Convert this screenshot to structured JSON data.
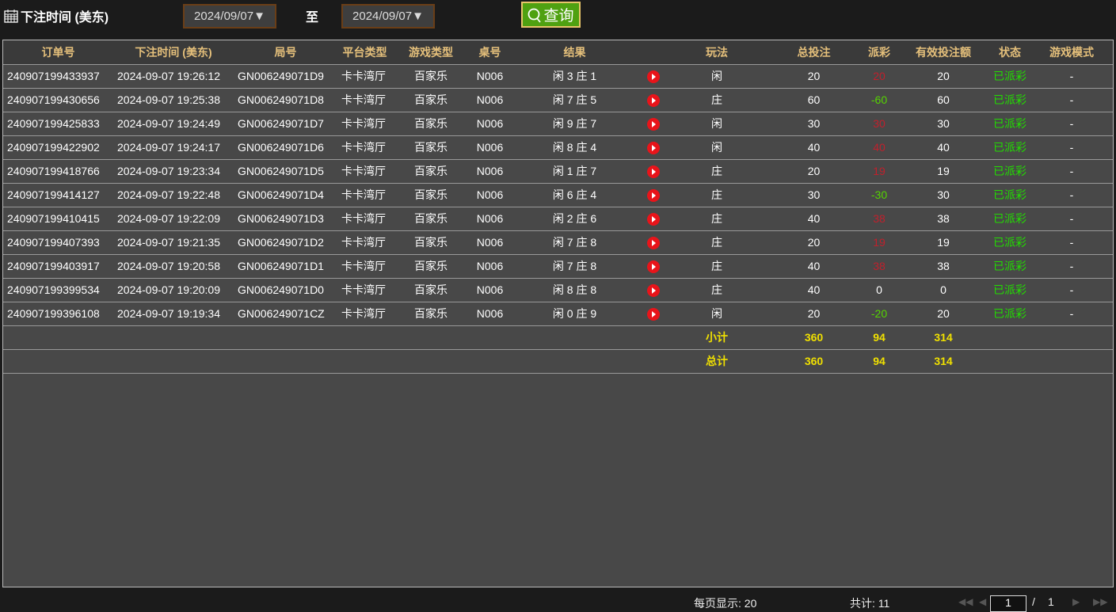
{
  "header": {
    "title": "下注时间 (美东)",
    "date_from": "2024/09/07▼",
    "to_label": "至",
    "date_to": "2024/09/07▼",
    "query_label": "查询"
  },
  "columns": [
    "订单号",
    "下注时间 (美东)",
    "局号",
    "平台类型",
    "游戏类型",
    "桌号",
    "结果",
    "",
    "玩法",
    "总投注",
    "派彩",
    "有效投注额",
    "状态",
    "游戏模式"
  ],
  "rows": [
    [
      "240907199433937",
      "2024-09-07 19:26:12",
      "GN006249071D9",
      "卡卡湾厅",
      "百家乐",
      "N006",
      "闲 3 庄 1",
      "闲",
      "20",
      "20",
      "20",
      "已派彩",
      "-",
      "red"
    ],
    [
      "240907199430656",
      "2024-09-07 19:25:38",
      "GN006249071D8",
      "卡卡湾厅",
      "百家乐",
      "N006",
      "闲 7 庄 5",
      "庄",
      "60",
      "-60",
      "60",
      "已派彩",
      "-",
      "green"
    ],
    [
      "240907199425833",
      "2024-09-07 19:24:49",
      "GN006249071D7",
      "卡卡湾厅",
      "百家乐",
      "N006",
      "闲 9 庄 7",
      "闲",
      "30",
      "30",
      "30",
      "已派彩",
      "-",
      "red"
    ],
    [
      "240907199422902",
      "2024-09-07 19:24:17",
      "GN006249071D6",
      "卡卡湾厅",
      "百家乐",
      "N006",
      "闲 8 庄 4",
      "闲",
      "40",
      "40",
      "40",
      "已派彩",
      "-",
      "red"
    ],
    [
      "240907199418766",
      "2024-09-07 19:23:34",
      "GN006249071D5",
      "卡卡湾厅",
      "百家乐",
      "N006",
      "闲 1 庄 7",
      "庄",
      "20",
      "19",
      "19",
      "已派彩",
      "-",
      "red"
    ],
    [
      "240907199414127",
      "2024-09-07 19:22:48",
      "GN006249071D4",
      "卡卡湾厅",
      "百家乐",
      "N006",
      "闲 6 庄 4",
      "庄",
      "30",
      "-30",
      "30",
      "已派彩",
      "-",
      "green"
    ],
    [
      "240907199410415",
      "2024-09-07 19:22:09",
      "GN006249071D3",
      "卡卡湾厅",
      "百家乐",
      "N006",
      "闲 2 庄 6",
      "庄",
      "40",
      "38",
      "38",
      "已派彩",
      "-",
      "red"
    ],
    [
      "240907199407393",
      "2024-09-07 19:21:35",
      "GN006249071D2",
      "卡卡湾厅",
      "百家乐",
      "N006",
      "闲 7 庄 8",
      "庄",
      "20",
      "19",
      "19",
      "已派彩",
      "-",
      "red"
    ],
    [
      "240907199403917",
      "2024-09-07 19:20:58",
      "GN006249071D1",
      "卡卡湾厅",
      "百家乐",
      "N006",
      "闲 7 庄 8",
      "庄",
      "40",
      "38",
      "38",
      "已派彩",
      "-",
      "red"
    ],
    [
      "240907199399534",
      "2024-09-07 19:20:09",
      "GN006249071D0",
      "卡卡湾厅",
      "百家乐",
      "N006",
      "闲 8 庄 8",
      "庄",
      "40",
      "0",
      "0",
      "已派彩",
      "-",
      "white"
    ],
    [
      "240907199396108",
      "2024-09-07 19:19:34",
      "GN006249071CZ",
      "卡卡湾厅",
      "百家乐",
      "N006",
      "闲 0 庄 9",
      "闲",
      "20",
      "-20",
      "20",
      "已派彩",
      "-",
      "green"
    ]
  ],
  "subtotal": {
    "label": "小计",
    "total_bet": "360",
    "payout": "94",
    "valid_bet": "314"
  },
  "total": {
    "label": "总计",
    "total_bet": "360",
    "payout": "94",
    "valid_bet": "314"
  },
  "footer": {
    "per_page": "每页显示: 20",
    "count": "共计: 11",
    "page": "1",
    "page_sep": "/",
    "pages": "1"
  },
  "colors": {
    "loss": "#c0202c",
    "win": "#55d400",
    "status": "#22dd00",
    "header_text": "#e5c07b",
    "sum_text": "#f0e000"
  }
}
